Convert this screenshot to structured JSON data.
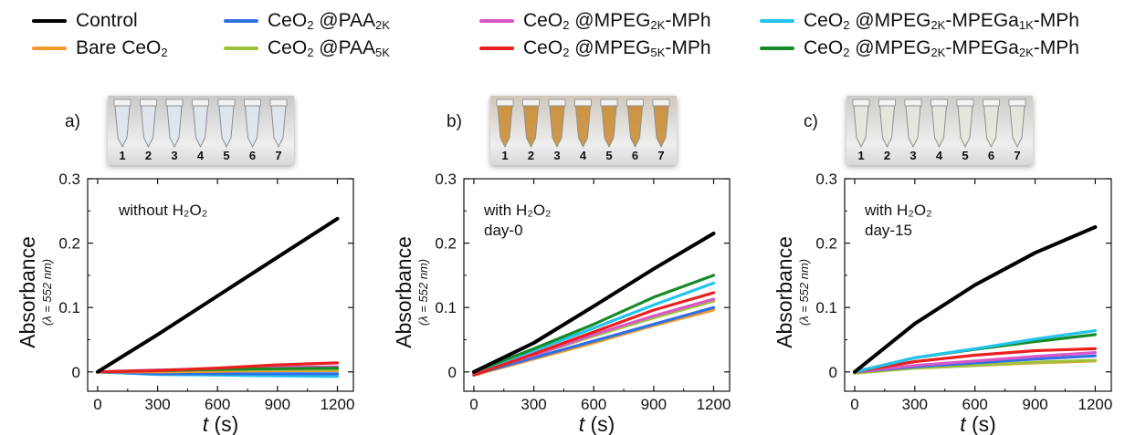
{
  "legend": [
    {
      "id": "control",
      "parts": [
        {
          "t": "Control"
        }
      ],
      "color": "#000000"
    },
    {
      "id": "bare",
      "parts": [
        {
          "t": "Bare CeO"
        },
        {
          "s": "2"
        }
      ],
      "color": "#f39a2e"
    },
    {
      "id": "paa2k",
      "parts": [
        {
          "t": "CeO"
        },
        {
          "s": "2"
        },
        {
          "t": " @PAA"
        },
        {
          "s": "2K"
        }
      ],
      "color": "#2f6fe4"
    },
    {
      "id": "paa5k",
      "parts": [
        {
          "t": "CeO"
        },
        {
          "s": "2"
        },
        {
          "t": " @PAA"
        },
        {
          "s": "5K"
        }
      ],
      "color": "#9ec13a"
    },
    {
      "id": "mpeg2k",
      "parts": [
        {
          "t": "CeO"
        },
        {
          "s": "2"
        },
        {
          "t": " @MPEG"
        },
        {
          "s": "2K"
        },
        {
          "t": "-MPh"
        }
      ],
      "color": "#d957c8"
    },
    {
      "id": "mpeg5k",
      "parts": [
        {
          "t": "CeO"
        },
        {
          "s": "2"
        },
        {
          "t": " @MPEG"
        },
        {
          "s": "5K"
        },
        {
          "t": "-MPh"
        }
      ],
      "color": "#e8201e"
    },
    {
      "id": "mpega1k",
      "parts": [
        {
          "t": "CeO"
        },
        {
          "s": "2"
        },
        {
          "t": " @MPEG"
        },
        {
          "s": "2K"
        },
        {
          "t": "-MPEGa"
        },
        {
          "s": "1K"
        },
        {
          "t": "-MPh"
        }
      ],
      "color": "#22c3ee"
    },
    {
      "id": "mpega2k",
      "parts": [
        {
          "t": "CeO"
        },
        {
          "s": "2"
        },
        {
          "t": " @MPEG"
        },
        {
          "s": "2K"
        },
        {
          "t": "-MPEGa"
        },
        {
          "s": "2K"
        },
        {
          "t": "-MPh"
        }
      ],
      "color": "#178a28"
    }
  ],
  "photos": [
    {
      "label": "a)",
      "tubes": [
        "1",
        "2",
        "3",
        "4",
        "5",
        "6",
        "7"
      ],
      "liquid": "#dfe6ee",
      "bg": "#c9c9c9"
    },
    {
      "label": "b)",
      "tubes": [
        "1",
        "2",
        "3",
        "4",
        "5",
        "6",
        "7"
      ],
      "liquid": "#c98a2e",
      "bg": "#cfc7bb"
    },
    {
      "label": "c)",
      "tubes": [
        "1",
        "2",
        "3",
        "4",
        "5",
        "6",
        "7"
      ],
      "liquid": "#e6e6de",
      "bg": "#cdccc7"
    }
  ],
  "chart_data": [
    {
      "type": "line",
      "annotation": [
        "without H₂O₂"
      ],
      "xlabel": "t (s)",
      "ylabel": "Absorbance",
      "ylabel_sub": "(λ = 552 nm)",
      "xlim": [
        -50,
        1280
      ],
      "ylim": [
        -0.03,
        0.3
      ],
      "xticks": [
        0,
        300,
        600,
        900,
        1200
      ],
      "yticks": [
        0,
        0.1,
        0.2,
        0.3
      ],
      "yticklabels": [
        "0",
        "0.1",
        "0.2",
        "0.3"
      ],
      "x": [
        0,
        300,
        600,
        900,
        1200
      ],
      "series": [
        {
          "id": "mpega1k",
          "values": [
            0,
            -0.004,
            -0.005,
            -0.006,
            -0.007
          ]
        },
        {
          "id": "paa2k",
          "values": [
            0,
            -0.003,
            -0.003,
            -0.003,
            -0.003
          ]
        },
        {
          "id": "bare",
          "values": [
            0,
            0.0,
            0.001,
            0.002,
            0.002
          ]
        },
        {
          "id": "paa5k",
          "values": [
            0,
            0.002,
            0.003,
            0.004,
            0.004
          ]
        },
        {
          "id": "mpeg2k",
          "values": [
            0,
            0.003,
            0.005,
            0.007,
            0.008
          ]
        },
        {
          "id": "mpega2k",
          "values": [
            0,
            0.002,
            0.004,
            0.005,
            0.006
          ]
        },
        {
          "id": "mpeg5k",
          "values": [
            0,
            0.002,
            0.006,
            0.011,
            0.014
          ]
        },
        {
          "id": "control",
          "values": [
            0,
            0.058,
            0.118,
            0.178,
            0.238
          ]
        }
      ]
    },
    {
      "type": "line",
      "annotation": [
        "with H₂O₂",
        "day-0"
      ],
      "xlabel": "t (s)",
      "ylabel": "Absorbance",
      "ylabel_sub": "(λ = 552 nm)",
      "xlim": [
        -50,
        1280
      ],
      "ylim": [
        -0.03,
        0.3
      ],
      "xticks": [
        0,
        300,
        600,
        900,
        1200
      ],
      "yticks": [
        0,
        0.1,
        0.2,
        0.3
      ],
      "yticklabels": [
        "0",
        "0.1",
        "0.2",
        "0.3"
      ],
      "x": [
        0,
        300,
        600,
        900,
        1200
      ],
      "series": [
        {
          "id": "bare",
          "values": [
            -0.005,
            0.02,
            0.045,
            0.072,
            0.096
          ]
        },
        {
          "id": "paa2k",
          "values": [
            -0.004,
            0.022,
            0.048,
            0.074,
            0.1
          ]
        },
        {
          "id": "paa5k",
          "values": [
            -0.002,
            0.026,
            0.056,
            0.084,
            0.11
          ]
        },
        {
          "id": "mpeg2k",
          "values": [
            -0.002,
            0.026,
            0.058,
            0.087,
            0.113
          ]
        },
        {
          "id": "mpeg5k",
          "values": [
            -0.005,
            0.028,
            0.062,
            0.096,
            0.123
          ]
        },
        {
          "id": "mpega1k",
          "values": [
            0.0,
            0.033,
            0.068,
            0.104,
            0.138
          ]
        },
        {
          "id": "mpega2k",
          "values": [
            0.0,
            0.036,
            0.074,
            0.116,
            0.15
          ]
        },
        {
          "id": "control",
          "values": [
            0.0,
            0.045,
            0.102,
            0.16,
            0.215
          ]
        }
      ]
    },
    {
      "type": "line",
      "annotation": [
        "with H₂O₂",
        "day-15"
      ],
      "xlabel": "t (s)",
      "ylabel": "Absorbance",
      "ylabel_sub": "(λ = 552 nm)",
      "xlim": [
        -50,
        1280
      ],
      "ylim": [
        -0.03,
        0.3
      ],
      "xticks": [
        0,
        300,
        600,
        900,
        1200
      ],
      "yticks": [
        0,
        0.1,
        0.2,
        0.3
      ],
      "yticklabels": [
        "0",
        "0.1",
        "0.2",
        "0.3"
      ],
      "x": [
        0,
        300,
        600,
        900,
        1200
      ],
      "series": [
        {
          "id": "bare",
          "values": [
            -0.002,
            0.006,
            0.01,
            0.014,
            0.017
          ]
        },
        {
          "id": "paa5k",
          "values": [
            -0.002,
            0.006,
            0.01,
            0.015,
            0.018
          ]
        },
        {
          "id": "paa2k",
          "values": [
            0.0,
            0.008,
            0.014,
            0.02,
            0.025
          ]
        },
        {
          "id": "mpeg2k",
          "values": [
            0.0,
            0.01,
            0.017,
            0.024,
            0.03
          ]
        },
        {
          "id": "mpeg5k",
          "values": [
            0.0,
            0.016,
            0.026,
            0.033,
            0.036
          ]
        },
        {
          "id": "mpega2k",
          "values": [
            0.0,
            0.022,
            0.035,
            0.047,
            0.058
          ]
        },
        {
          "id": "mpega1k",
          "values": [
            0.0,
            0.022,
            0.036,
            0.051,
            0.064
          ]
        },
        {
          "id": "control",
          "values": [
            0.0,
            0.075,
            0.135,
            0.185,
            0.225
          ]
        }
      ]
    }
  ]
}
